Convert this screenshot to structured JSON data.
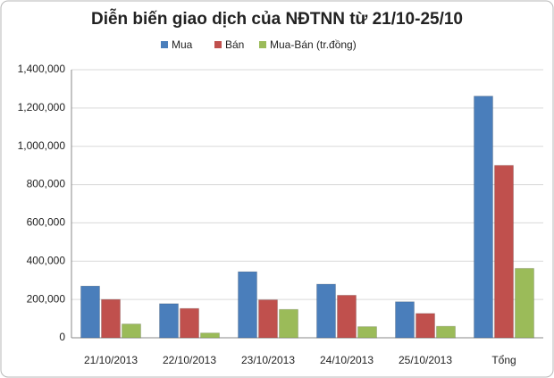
{
  "chart_data": {
    "type": "bar",
    "title": "Diễn biến giao dịch của NĐTNN từ 21/10-25/10",
    "categories": [
      "21/10/2013",
      "22/10/2013",
      "23/10/2013",
      "24/10/2013",
      "25/10/2013",
      "Tổng"
    ],
    "series": [
      {
        "name": "Mua",
        "color": "#4a7ebb",
        "values": [
          270000,
          178000,
          345000,
          280000,
          188000,
          1262000
        ]
      },
      {
        "name": "Bán",
        "color": "#c0504d",
        "values": [
          200000,
          153000,
          198000,
          222000,
          127000,
          900000
        ]
      },
      {
        "name": "Mua-Bán (tr.đồng)",
        "color": "#9bbb59",
        "values": [
          72000,
          25000,
          148000,
          58000,
          60000,
          362000
        ]
      }
    ],
    "ylim": [
      0,
      1400000
    ],
    "yticks": [
      0,
      {
        "value": 200000,
        "label": "200,000"
      },
      {
        "value": 400000,
        "label": "400,000"
      },
      {
        "value": 600000,
        "label": "600,000"
      },
      {
        "value": 800000,
        "label": "800,000"
      },
      {
        "value": 1000000,
        "label": "1,000,000"
      },
      {
        "value": 1200000,
        "label": "1,200,000"
      },
      {
        "value": 1400000,
        "label": "1,400,000"
      }
    ],
    "grid": true
  }
}
